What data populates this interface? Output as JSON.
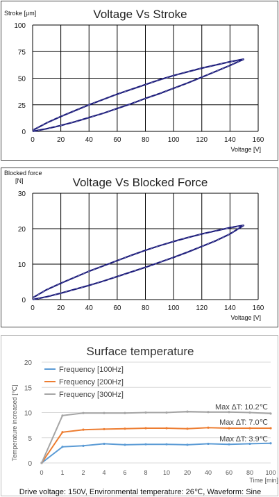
{
  "chart_data": [
    {
      "type": "line",
      "title": "Voltage Vs Stroke",
      "ylabel": "Stroke [μm]",
      "xlabel": "Voltage [V]",
      "xlim": [
        0,
        160
      ],
      "ylim": [
        0,
        100
      ],
      "x_ticks": [
        0,
        20,
        40,
        60,
        80,
        100,
        120,
        140,
        160
      ],
      "y_ticks": [
        0,
        25,
        50,
        75,
        100
      ],
      "grid": true,
      "line_color": "#1b1b7a",
      "series": [
        {
          "x": [
            0,
            10,
            20,
            30,
            40,
            50,
            60,
            70,
            80,
            90,
            100,
            110,
            120,
            130,
            140,
            150
          ],
          "y": [
            0,
            2.5,
            5.5,
            9,
            13,
            17,
            21.5,
            26,
            31,
            35.5,
            40.5,
            45.5,
            51,
            56.5,
            62,
            68
          ]
        },
        {
          "x": [
            150,
            140,
            130,
            120,
            110,
            100,
            90,
            80,
            70,
            60,
            50,
            40,
            30,
            20,
            10,
            0
          ],
          "y": [
            68,
            65.5,
            62.5,
            59.5,
            56,
            52.5,
            48.5,
            44,
            39.5,
            35,
            30,
            25,
            19.5,
            14,
            8,
            1
          ]
        }
      ]
    },
    {
      "type": "line",
      "title": "Voltage Vs Blocked Force",
      "ylabel": "Blocked force [N]",
      "xlabel": "Voltage [V]",
      "xlim": [
        0,
        160
      ],
      "ylim": [
        0,
        30
      ],
      "x_ticks": [
        0,
        20,
        40,
        60,
        80,
        100,
        120,
        140,
        160
      ],
      "y_ticks": [
        0,
        10,
        20,
        30
      ],
      "grid": true,
      "line_color": "#1b1b7a",
      "series": [
        {
          "x": [
            0,
            10,
            20,
            30,
            40,
            50,
            60,
            70,
            80,
            90,
            100,
            110,
            120,
            130,
            140,
            150
          ],
          "y": [
            0,
            0.8,
            1.8,
            2.9,
            4.0,
            5.2,
            6.5,
            7.8,
            9.1,
            10.5,
            11.9,
            13.4,
            15.0,
            16.6,
            18.5,
            21.0
          ]
        },
        {
          "x": [
            150,
            140,
            130,
            120,
            110,
            100,
            90,
            80,
            70,
            60,
            50,
            40,
            30,
            20,
            10,
            0
          ],
          "y": [
            21.0,
            20.3,
            19.4,
            18.5,
            17.5,
            16.4,
            15.2,
            13.9,
            12.5,
            11.0,
            9.5,
            8.0,
            6.3,
            4.6,
            2.8,
            0.5
          ]
        }
      ]
    },
    {
      "type": "line",
      "title": "Surface temperature",
      "ylabel": "Temperature increased [℃]",
      "xlabel": "Time [min]",
      "ylim": [
        0,
        20
      ],
      "y_ticks": [
        0,
        5,
        10,
        15,
        20
      ],
      "x_ticks": [
        "0",
        "1",
        "2",
        "4",
        "6",
        "8",
        "10",
        "20",
        "40",
        "60",
        "80",
        "100"
      ],
      "grid": true,
      "legend": "top-left",
      "series": [
        {
          "name": "Frequency [100Hz]",
          "color": "#5b9bd5",
          "y": [
            0,
            3.2,
            3.4,
            3.8,
            3.6,
            3.7,
            3.7,
            3.6,
            3.8,
            3.7,
            3.8,
            3.9
          ]
        },
        {
          "name": "Frequency [200Hz]",
          "color": "#ed7d31",
          "y": [
            0,
            6.1,
            6.6,
            6.7,
            6.8,
            6.9,
            6.9,
            6.8,
            7.0,
            6.9,
            6.9,
            6.9
          ]
        },
        {
          "name": "Frequency [300Hz]",
          "color": "#a5a5a5",
          "y": [
            0,
            9.4,
            9.9,
            9.9,
            9.9,
            10.0,
            10.0,
            10.2,
            10.1,
            10.1,
            10.0,
            9.8
          ]
        }
      ],
      "annotations": [
        "Max ∆T: 10.2℃",
        "Max ∆T: 7.0℃",
        "Max ∆T: 3.9℃"
      ],
      "footnote": "Drive voltage: 150V, Environmental temperature: 26℃, Waveform: Sine"
    }
  ]
}
